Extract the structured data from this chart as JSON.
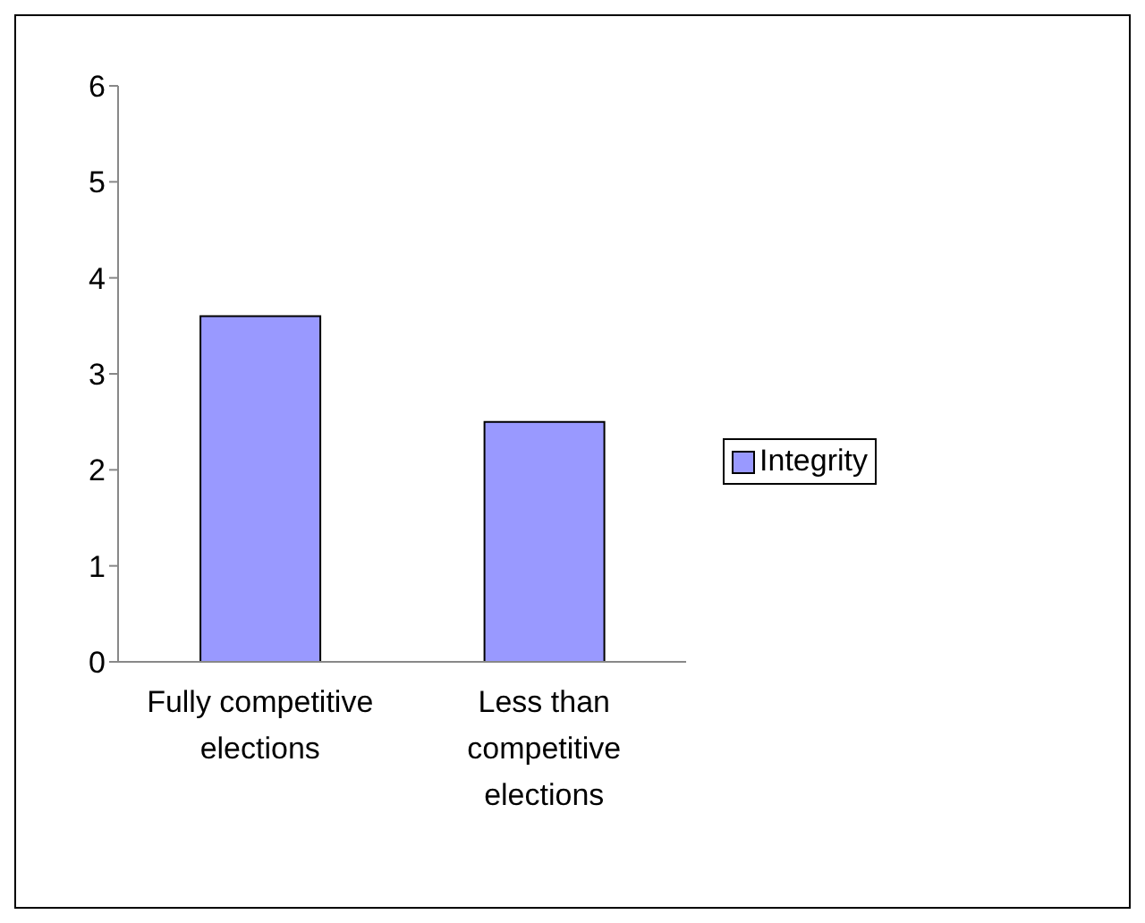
{
  "chart_data": {
    "type": "bar",
    "categories": [
      "Fully competitive elections",
      "Less than competitive elections"
    ],
    "series": [
      {
        "name": "Integrity",
        "color": "#9999ff",
        "values": [
          3.6,
          2.5
        ]
      }
    ],
    "ylim": [
      0,
      6
    ],
    "yticks": [
      0,
      1,
      2,
      3,
      4,
      5,
      6
    ],
    "grid": false,
    "legend": "right"
  }
}
